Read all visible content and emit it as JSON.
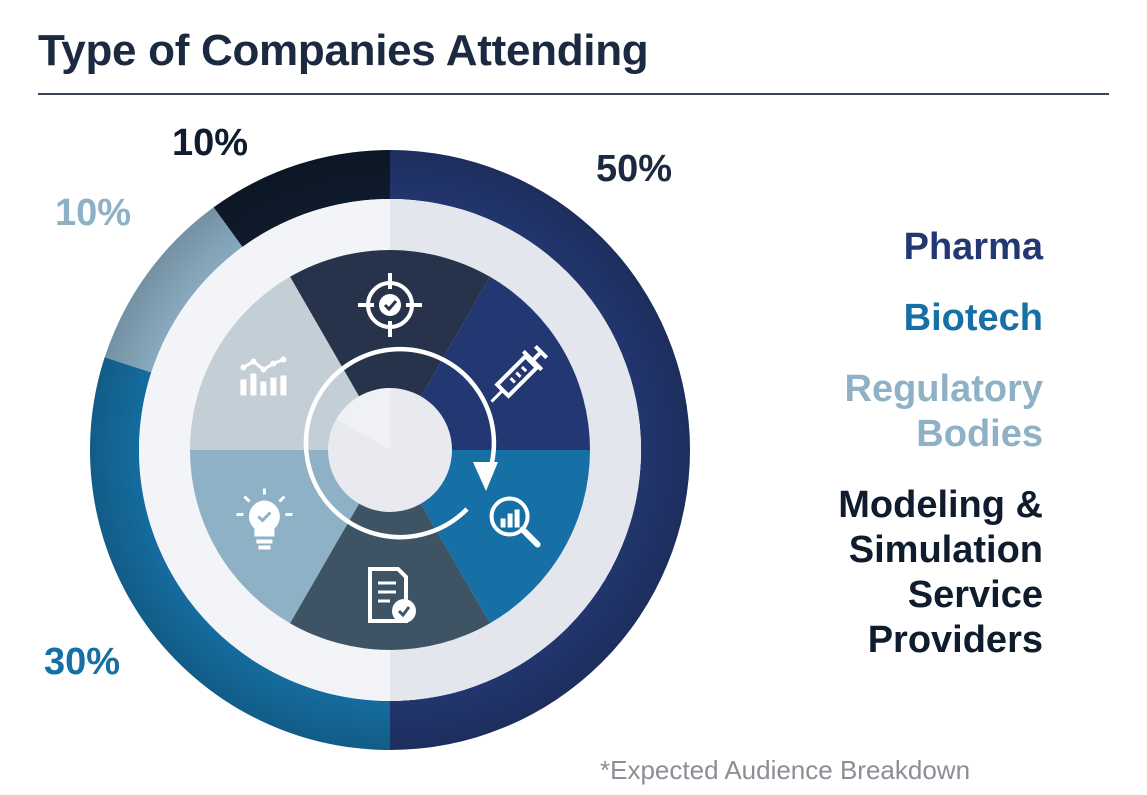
{
  "title": "Type of Companies Attending",
  "footnote": "*Expected Audience Breakdown",
  "colors": {
    "pharma": "#233872",
    "biotech": "#1670a5",
    "regulatory": "#8eb1c6",
    "modeling": "#0f1c2d"
  },
  "icons": [
    "target-check-icon",
    "syringe-icon",
    "analytics-search-icon",
    "document-check-icon",
    "lightbulb-check-icon",
    "bar-line-chart-icon"
  ],
  "chart_data": {
    "type": "pie",
    "categories": [
      "Pharma",
      "Biotech",
      "Regulatory Bodies",
      "Modeling & Simulation Service Providers"
    ],
    "values": [
      50,
      30,
      10,
      10
    ],
    "value_labels": [
      "50%",
      "30%",
      "10%",
      "10%"
    ],
    "legend_position": "right"
  },
  "legend": [
    {
      "label_lines": [
        "Pharma"
      ],
      "color": "#233872"
    },
    {
      "label_lines": [
        "Biotech"
      ],
      "color": "#1670a5"
    },
    {
      "label_lines": [
        "Regulatory",
        "Bodies"
      ],
      "color": "#8eb1c6"
    },
    {
      "label_lines": [
        "Modeling &",
        "Simulation",
        "Service",
        "Providers"
      ],
      "color": "#0f1c2d"
    }
  ]
}
